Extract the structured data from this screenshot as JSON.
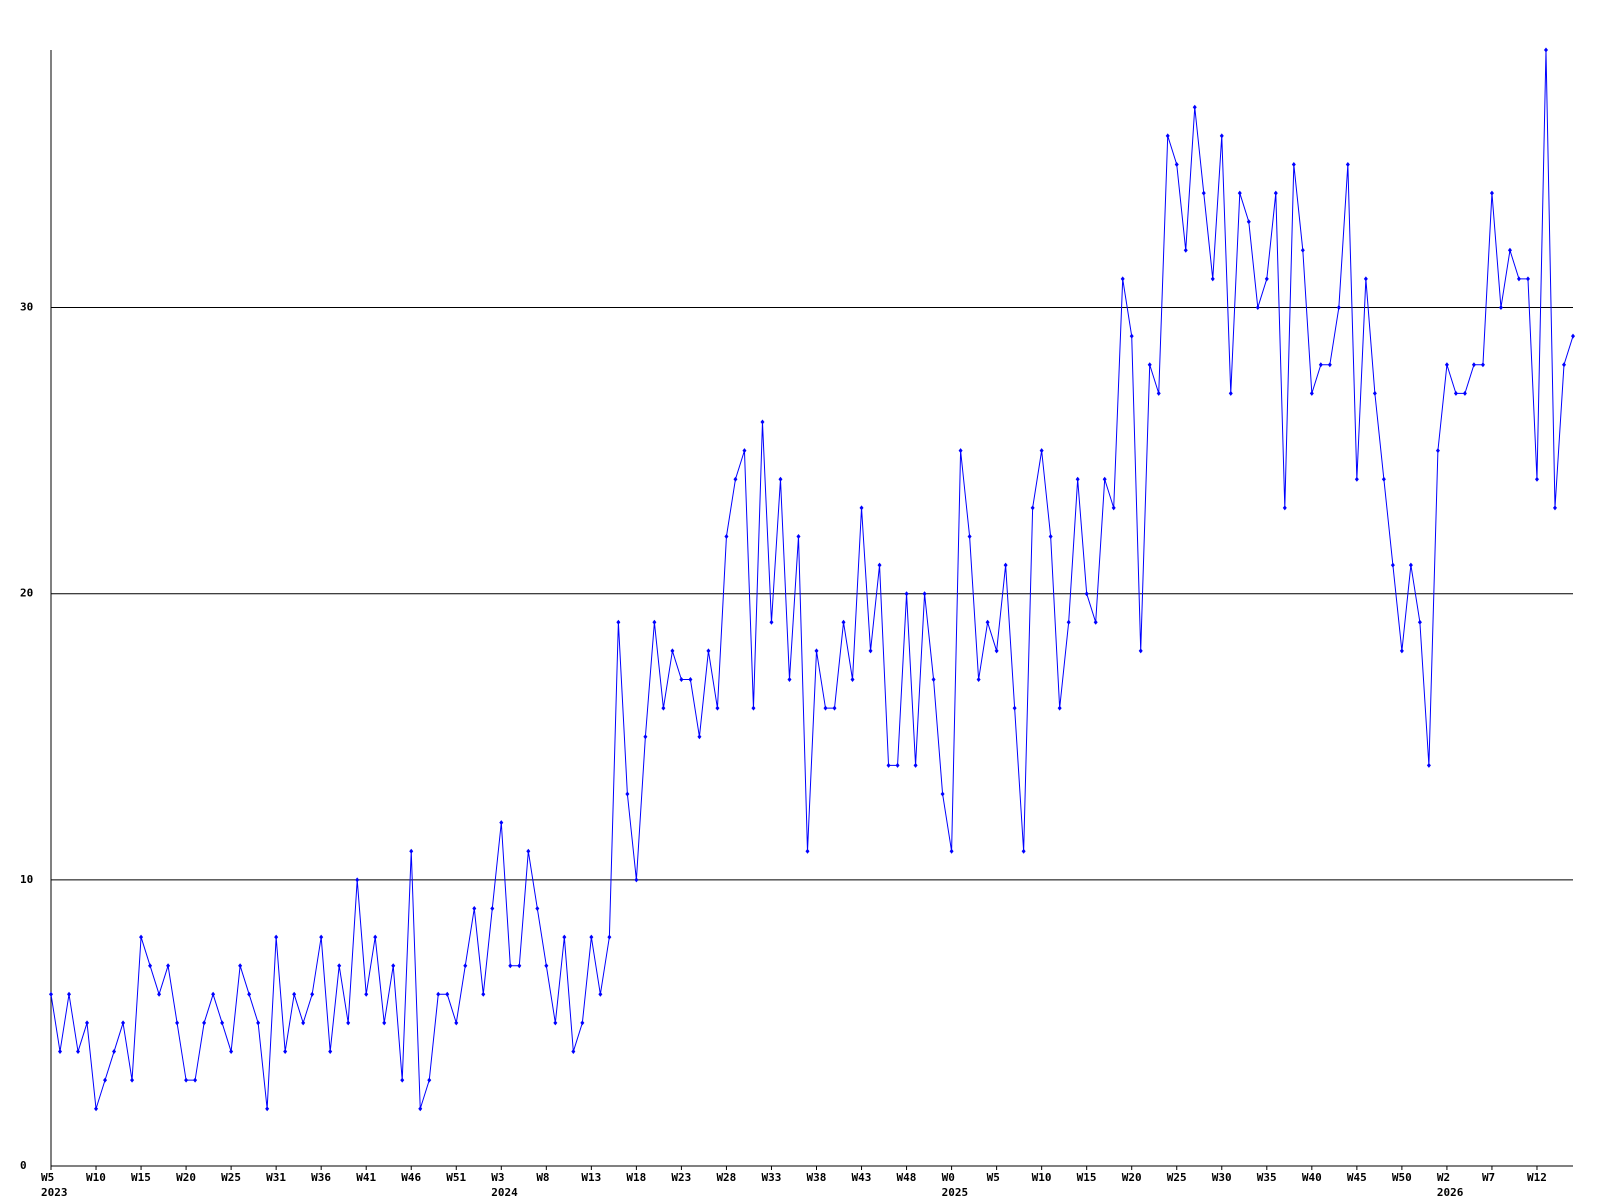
{
  "chart_data": {
    "type": "line",
    "categories": [
      "W5",
      null,
      null,
      null,
      null,
      "W10",
      null,
      null,
      null,
      null,
      "W15",
      null,
      null,
      null,
      null,
      "W20",
      null,
      null,
      null,
      null,
      "W25",
      null,
      null,
      null,
      null,
      "W31",
      null,
      null,
      null,
      null,
      "W36",
      null,
      null,
      null,
      null,
      "W41",
      null,
      null,
      null,
      null,
      "W46",
      null,
      null,
      null,
      null,
      "W51",
      null,
      null,
      null,
      null,
      "W3",
      null,
      null,
      null,
      null,
      "W8",
      null,
      null,
      null,
      null,
      "W13",
      null,
      null,
      null,
      null,
      "W18",
      null,
      null,
      null,
      null,
      "W23",
      null,
      null,
      null,
      null,
      "W28",
      null,
      null,
      null,
      null,
      "W33",
      null,
      null,
      null,
      null,
      "W38",
      null,
      null,
      null,
      null,
      "W43",
      null,
      null,
      null,
      null,
      "W48",
      null,
      null,
      null,
      null,
      "W0",
      null,
      null,
      null,
      null,
      "W5",
      null,
      null,
      null,
      null,
      "W10",
      null,
      null,
      null,
      null,
      "W15",
      null,
      null,
      null,
      null,
      "W20",
      null,
      null,
      null,
      null,
      "W25",
      null,
      null,
      null,
      null,
      "W30",
      null,
      null,
      null,
      null,
      "W35",
      null,
      null,
      null,
      null,
      "W40",
      null,
      null,
      null,
      null,
      "W45",
      null,
      null,
      null,
      null,
      "W50",
      null,
      null,
      null,
      null,
      "W2",
      null,
      null,
      null,
      null,
      "W7",
      null,
      null,
      null,
      null,
      "W12",
      null,
      null,
      null,
      null
    ],
    "year_labels": [
      "2023",
      null,
      null,
      null,
      null,
      null,
      null,
      null,
      null,
      null,
      null,
      null,
      null,
      null,
      null,
      null,
      null,
      null,
      null,
      null,
      null,
      null,
      null,
      null,
      null,
      null,
      null,
      null,
      null,
      null,
      null,
      null,
      null,
      null,
      null,
      null,
      null,
      null,
      null,
      null,
      null,
      null,
      null,
      null,
      null,
      null,
      null,
      null,
      null,
      null,
      "2024",
      null,
      null,
      null,
      null,
      null,
      null,
      null,
      null,
      null,
      null,
      null,
      null,
      null,
      null,
      null,
      null,
      null,
      null,
      null,
      null,
      null,
      null,
      null,
      null,
      null,
      null,
      null,
      null,
      null,
      null,
      null,
      null,
      null,
      null,
      null,
      null,
      null,
      null,
      null,
      null,
      null,
      null,
      null,
      null,
      null,
      null,
      null,
      null,
      null,
      "2025",
      null,
      null,
      null,
      null,
      null,
      null,
      null,
      null,
      null,
      null,
      null,
      null,
      null,
      null,
      null,
      null,
      null,
      null,
      null,
      null,
      null,
      null,
      null,
      null,
      null,
      null,
      null,
      null,
      null,
      null,
      null,
      null,
      null,
      null,
      null,
      null,
      null,
      null,
      null,
      null,
      null,
      null,
      null,
      null,
      null,
      null,
      null,
      null,
      null,
      null,
      null,
      null,
      null,
      null,
      "2026",
      null,
      null,
      null,
      null,
      null,
      null,
      null,
      null,
      null,
      null,
      null,
      null,
      null,
      null
    ],
    "series": [
      {
        "color": "#0000ff",
        "values": [
          6,
          4,
          6,
          4,
          5,
          2,
          3,
          4,
          5,
          3,
          8,
          7,
          6,
          7,
          5,
          3,
          3,
          5,
          6,
          5,
          4,
          7,
          6,
          5,
          2,
          8,
          4,
          6,
          5,
          6,
          8,
          4,
          7,
          5,
          10,
          6,
          8,
          5,
          7,
          3,
          11,
          2,
          3,
          6,
          6,
          5,
          7,
          9,
          6,
          9,
          12,
          7,
          7,
          11,
          9,
          7,
          5,
          8,
          4,
          5,
          8,
          6,
          8,
          19,
          13,
          10,
          15,
          19,
          16,
          18,
          17,
          17,
          15,
          18,
          16,
          22,
          24,
          25,
          16,
          26,
          19,
          24,
          17,
          22,
          11,
          18,
          16,
          16,
          19,
          17,
          23,
          18,
          21,
          14,
          14,
          20,
          14,
          20,
          17,
          13,
          11,
          25,
          22,
          17,
          19,
          18,
          21,
          16,
          11,
          23,
          25,
          22,
          16,
          19,
          24,
          20,
          19,
          24,
          23,
          31,
          29,
          18,
          28,
          27,
          36,
          35,
          32,
          37,
          34,
          31,
          36,
          27,
          34,
          33,
          30,
          31,
          34,
          23,
          35,
          32,
          27,
          28,
          28,
          30,
          35,
          24,
          31,
          27,
          24,
          21,
          18,
          21,
          19,
          14,
          25,
          28,
          27,
          27,
          28,
          28,
          34,
          30,
          32,
          31,
          31,
          24,
          39,
          23,
          28,
          29
        ]
      }
    ],
    "ylim": [
      0,
      39
    ],
    "yticks": [
      0,
      10,
      20,
      30
    ],
    "grid": true
  }
}
